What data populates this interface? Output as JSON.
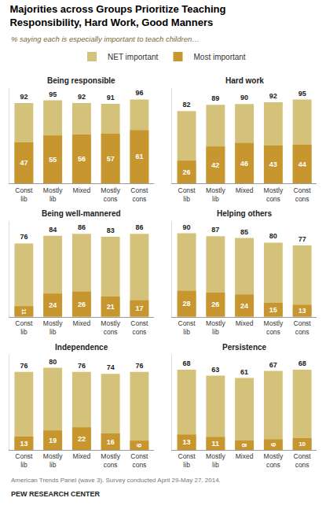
{
  "title": "Majorities across Groups Prioritize Teaching\nResponsibility, Hard Work, Good Manners",
  "subtitle": "% saying each is especially important to teach children…",
  "footnote": "American Trends Panel (wave 3). Survey conducted April 29-May 27, 2014.",
  "source": "PEW RESEARCH CENTER",
  "legend": "top",
  "chart_data": [
    {
      "type": "bar",
      "title": "Being responsible",
      "categories": [
        "Const\nlib",
        "Mostly\nlib",
        "Mixed",
        "Mostly\ncons",
        "Const\ncons"
      ],
      "series": [
        {
          "name": "NET important",
          "color": "#d4c27a",
          "values": [
            92,
            95,
            92,
            91,
            96
          ]
        },
        {
          "name": "Most important",
          "color": "#c8962e",
          "values": [
            47,
            55,
            56,
            57,
            61
          ]
        }
      ],
      "ylim": [
        0,
        109
      ],
      "stacked": false,
      "data_labels": true,
      "tick_labels": "x",
      "grid": false
    },
    {
      "type": "bar",
      "title": "Hard work",
      "categories": [
        "Const\nlib",
        "Mostly\nlib",
        "Mixed",
        "Mostly\ncons",
        "Const\ncons"
      ],
      "series": [
        {
          "name": "NET important",
          "color": "#d4c27a",
          "values": [
            82,
            89,
            90,
            92,
            95
          ]
        },
        {
          "name": "Most important",
          "color": "#c8962e",
          "values": [
            26,
            42,
            46,
            43,
            44
          ]
        }
      ],
      "ylim": [
        0,
        108
      ],
      "stacked": false,
      "data_labels": true,
      "tick_labels": "x",
      "grid": false
    },
    {
      "type": "bar",
      "title": "Being well-mannered",
      "categories": [
        "Const\nlib",
        "Mostly\nlib",
        "Mixed",
        "Mostly\ncons",
        "Const\ncons"
      ],
      "series": [
        {
          "name": "NET important",
          "color": "#d4c27a",
          "values": [
            76,
            84,
            86,
            83,
            86
          ]
        },
        {
          "name": "Most important",
          "color": "#c8962e",
          "values": [
            11,
            24,
            26,
            21,
            17
          ]
        }
      ],
      "ylim": [
        0,
        99
      ],
      "stacked": false,
      "data_labels": true,
      "tick_labels": "x",
      "grid": false
    },
    {
      "type": "bar",
      "title": "Helping others",
      "categories": [
        "Const\nlib",
        "Mostly\nlib",
        "Mixed",
        "Mostly\ncons",
        "Const\ncons"
      ],
      "series": [
        {
          "name": "NET important",
          "color": "#d4c27a",
          "values": [
            90,
            87,
            85,
            80,
            77
          ]
        },
        {
          "name": "Most important",
          "color": "#c8962e",
          "values": [
            28,
            26,
            24,
            15,
            13
          ]
        }
      ],
      "ylim": [
        0,
        103
      ],
      "stacked": false,
      "data_labels": true,
      "tick_labels": "x",
      "grid": false
    },
    {
      "type": "bar",
      "title": "Independence",
      "categories": [
        "Const\nlib",
        "Mostly\nlib",
        "Mixed",
        "Mostly\ncons",
        "Const\ncons"
      ],
      "series": [
        {
          "name": "NET important",
          "color": "#d4c27a",
          "values": [
            76,
            80,
            76,
            74,
            76
          ]
        },
        {
          "name": "Most important",
          "color": "#c8962e",
          "values": [
            13,
            19,
            22,
            16,
            9
          ]
        }
      ],
      "ylim": [
        0,
        93
      ],
      "stacked": false,
      "data_labels": true,
      "tick_labels": "x",
      "grid": false
    },
    {
      "type": "bar",
      "title": "Persistence",
      "categories": [
        "Const\nlib",
        "Mostly\nlib",
        "Mixed",
        "Mostly\ncons",
        "Const\ncons"
      ],
      "series": [
        {
          "name": "NET important",
          "color": "#d4c27a",
          "values": [
            68,
            63,
            61,
            67,
            68
          ]
        },
        {
          "name": "Most important",
          "color": "#c8962e",
          "values": [
            13,
            11,
            8,
            9,
            10
          ]
        }
      ],
      "ylim": [
        0,
        81
      ],
      "stacked": false,
      "data_labels": true,
      "tick_labels": "x",
      "grid": false
    }
  ]
}
